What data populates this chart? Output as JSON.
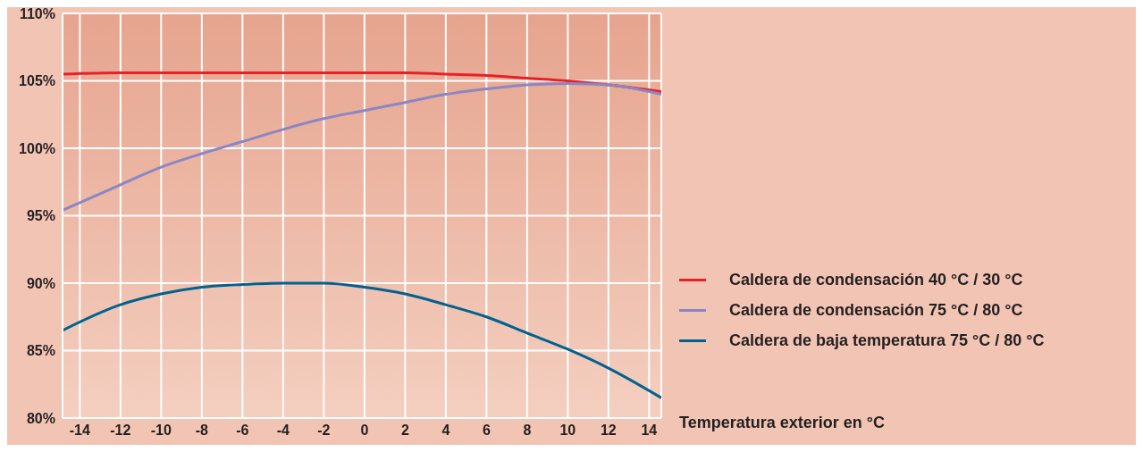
{
  "chart_data": {
    "type": "line",
    "xlabel": "Temperatura exterior en °C",
    "x": [
      -14.85,
      -12,
      -10,
      -8,
      -6,
      -4,
      -2,
      0,
      2,
      4,
      6,
      8,
      10,
      12,
      14.6
    ],
    "series": [
      {
        "name": "Caldera de condensación 40 °C / 30 °C",
        "color": "#e8202a",
        "values": [
          105.5,
          105.6,
          105.6,
          105.6,
          105.6,
          105.6,
          105.6,
          105.6,
          105.6,
          105.5,
          105.4,
          105.2,
          105.0,
          104.7,
          104.2
        ]
      },
      {
        "name": "Caldera de condensación 75 °C / 80 °C",
        "color": "#8b86c4",
        "values": [
          95.4,
          97.3,
          98.6,
          99.6,
          100.5,
          101.4,
          102.2,
          102.8,
          103.4,
          104.0,
          104.4,
          104.7,
          104.8,
          104.7,
          104.0
        ]
      },
      {
        "name": "Caldera de baja temperatura 75 °C / 80 °C",
        "color": "#00628f",
        "values": [
          86.5,
          88.4,
          89.2,
          89.7,
          89.9,
          90.0,
          90.0,
          89.7,
          89.2,
          88.4,
          87.5,
          86.3,
          85.1,
          83.7,
          81.5
        ]
      }
    ],
    "xlim": [
      -14.85,
      14.6
    ],
    "xticks": [
      -14,
      -12,
      -10,
      -8,
      -6,
      -4,
      -2,
      0,
      2,
      4,
      6,
      8,
      10,
      12,
      14
    ],
    "ylim": [
      80,
      110
    ],
    "yticks": [
      {
        "value": 80,
        "label": "80%"
      },
      {
        "value": 85,
        "label": "85%"
      },
      {
        "value": 90,
        "label": "90%"
      },
      {
        "value": 95,
        "label": "95%"
      },
      {
        "value": 100,
        "label": "100%"
      },
      {
        "value": 105,
        "label": "105%"
      },
      {
        "value": 110,
        "label": "110%"
      }
    ],
    "grid": true,
    "legend": "right",
    "marker": "none",
    "line_style": "solid"
  }
}
